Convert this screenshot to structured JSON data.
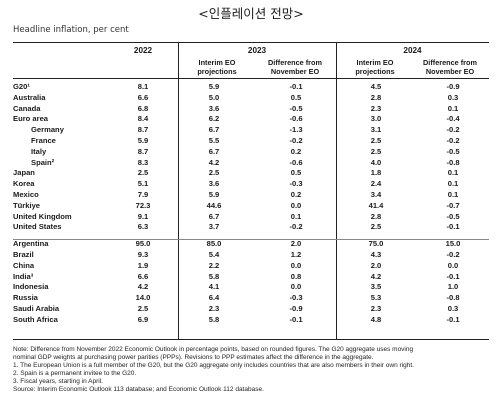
{
  "title": "<인플레이션 전망>",
  "subtitle": "Headline inflation, per cent",
  "header": {
    "col2022": "2022",
    "col2023": "2023",
    "col2024": "2024",
    "interim_eo": "Interim EO projections",
    "difference": "Difference from November EO"
  },
  "rows": [
    {
      "name": "G20¹",
      "indent": false,
      "v2022": "8.1",
      "p2023": "5.9",
      "d2023": "-0.1",
      "p2024": "4.5",
      "d2024": "-0.9"
    },
    {
      "name": "Australia",
      "indent": false,
      "v2022": "6.6",
      "p2023": "5.0",
      "d2023": "0.5",
      "p2024": "2.8",
      "d2024": "0.3"
    },
    {
      "name": "Canada",
      "indent": false,
      "v2022": "6.8",
      "p2023": "3.6",
      "d2023": "-0.5",
      "p2024": "2.3",
      "d2024": "0.1"
    },
    {
      "name": "Euro area",
      "indent": false,
      "v2022": "8.4",
      "p2023": "6.2",
      "d2023": "-0.6",
      "p2024": "3.0",
      "d2024": "-0.4"
    },
    {
      "name": "Germany",
      "indent": true,
      "v2022": "8.7",
      "p2023": "6.7",
      "d2023": "-1.3",
      "p2024": "3.1",
      "d2024": "-0.2"
    },
    {
      "name": "France",
      "indent": true,
      "v2022": "5.9",
      "p2023": "5.5",
      "d2023": "-0.2",
      "p2024": "2.5",
      "d2024": "-0.2"
    },
    {
      "name": "Italy",
      "indent": true,
      "v2022": "8.7",
      "p2023": "6.7",
      "d2023": "0.2",
      "p2024": "2.5",
      "d2024": "-0.5"
    },
    {
      "name": "Spain²",
      "indent": true,
      "v2022": "8.3",
      "p2023": "4.2",
      "d2023": "-0.6",
      "p2024": "4.0",
      "d2024": "-0.8"
    },
    {
      "name": "Japan",
      "indent": false,
      "v2022": "2.5",
      "p2023": "2.5",
      "d2023": "0.5",
      "p2024": "1.8",
      "d2024": "0.1"
    },
    {
      "name": "Korea",
      "indent": false,
      "v2022": "5.1",
      "p2023": "3.6",
      "d2023": "-0.3",
      "p2024": "2.4",
      "d2024": "0.1"
    },
    {
      "name": "Mexico",
      "indent": false,
      "v2022": "7.9",
      "p2023": "5.9",
      "d2023": "0.2",
      "p2024": "3.4",
      "d2024": "0.1"
    },
    {
      "name": "Türkiye",
      "indent": false,
      "v2022": "72.3",
      "p2023": "44.6",
      "d2023": "0.0",
      "p2024": "41.4",
      "d2024": "-0.7"
    },
    {
      "name": "United Kingdom",
      "indent": false,
      "v2022": "9.1",
      "p2023": "6.7",
      "d2023": "0.1",
      "p2024": "2.8",
      "d2024": "-0.5"
    },
    {
      "name": "United States",
      "indent": false,
      "v2022": "6.3",
      "p2023": "3.7",
      "d2023": "-0.2",
      "p2024": "2.5",
      "d2024": "-0.1"
    },
    {
      "name": "Argentina",
      "indent": false,
      "v2022": "95.0",
      "p2023": "85.0",
      "d2023": "2.0",
      "p2024": "75.0",
      "d2024": "15.0"
    },
    {
      "name": "Brazil",
      "indent": false,
      "v2022": "9.3",
      "p2023": "5.4",
      "d2023": "1.2",
      "p2024": "4.3",
      "d2024": "-0.2"
    },
    {
      "name": "China",
      "indent": false,
      "v2022": "1.9",
      "p2023": "2.2",
      "d2023": "0.0",
      "p2024": "2.0",
      "d2024": "0.0"
    },
    {
      "name": "India³",
      "indent": false,
      "v2022": "6.6",
      "p2023": "5.8",
      "d2023": "0.8",
      "p2024": "4.2",
      "d2024": "-0.1"
    },
    {
      "name": "Indonesia",
      "indent": false,
      "v2022": "4.2",
      "p2023": "4.1",
      "d2023": "0.0",
      "p2024": "3.5",
      "d2024": "1.0"
    },
    {
      "name": "Russia",
      "indent": false,
      "v2022": "14.0",
      "p2023": "6.4",
      "d2023": "-0.3",
      "p2024": "5.3",
      "d2024": "-0.8"
    },
    {
      "name": "Saudi Arabia",
      "indent": false,
      "v2022": "2.5",
      "p2023": "2.3",
      "d2023": "-0.9",
      "p2024": "2.3",
      "d2024": "0.3"
    },
    {
      "name": "South Africa",
      "indent": false,
      "v2022": "6.9",
      "p2023": "5.8",
      "d2023": "-0.1",
      "p2024": "4.8",
      "d2024": "-0.1"
    }
  ],
  "notes": [
    "Note: Difference from November 2022 Economic Outlook in percentage points, based on rounded figures. The G20 aggregate uses moving",
    "nominal GDP weights at purchasing power parities (PPPs). Revisions to PPP estimates affect the difference in the aggregate.",
    "1.    The European Union is a full member of the G20, but the G20 aggregate only includes countries that are also members in their own right.",
    "2.    Spain is a permanent invitee to the G20.",
    "3.    Fiscal years, starting in April.",
    "Source: Interim Economic Outlook 113 database; and Economic Outlook 112 database."
  ]
}
